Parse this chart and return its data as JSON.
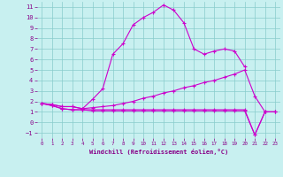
{
  "xlabel": "Windchill (Refroidissement éolien,°C)",
  "bg_color": "#c8f0f0",
  "line_color": "#cc00cc",
  "grid_color": "#88cccc",
  "xlim": [
    -0.5,
    23.5
  ],
  "ylim": [
    -1.5,
    11.5
  ],
  "xticks": [
    0,
    1,
    2,
    3,
    4,
    5,
    6,
    7,
    8,
    9,
    10,
    11,
    12,
    13,
    14,
    15,
    16,
    17,
    18,
    19,
    20,
    21,
    22,
    23
  ],
  "yticks": [
    -1,
    0,
    1,
    2,
    3,
    4,
    5,
    6,
    7,
    8,
    9,
    10,
    11
  ],
  "line1_x": [
    0,
    1,
    2,
    3,
    4,
    5,
    6,
    7,
    8,
    9,
    10,
    11,
    12,
    13,
    14,
    15,
    16,
    17,
    18,
    19,
    20
  ],
  "line1_y": [
    1.8,
    1.7,
    1.5,
    1.5,
    1.3,
    2.2,
    3.2,
    6.5,
    7.5,
    9.3,
    10.0,
    10.5,
    11.2,
    10.7,
    9.5,
    7.0,
    6.5,
    6.8,
    7.0,
    6.8,
    5.3
  ],
  "line2_x": [
    0,
    1,
    2,
    3,
    4,
    5,
    6,
    7,
    8,
    9,
    10,
    11,
    12,
    13,
    14,
    15,
    16,
    17,
    18,
    19,
    20,
    21,
    22,
    23
  ],
  "line2_y": [
    1.8,
    1.7,
    1.5,
    1.5,
    1.3,
    1.4,
    1.5,
    1.6,
    1.8,
    2.0,
    2.3,
    2.5,
    2.8,
    3.0,
    3.3,
    3.5,
    3.8,
    4.0,
    4.3,
    4.6,
    5.0,
    2.5,
    1.0,
    1.0
  ],
  "line3_x": [
    0,
    1,
    2,
    3,
    4,
    5,
    6,
    7,
    8,
    9,
    10,
    11,
    12,
    13,
    14,
    15,
    16,
    17,
    18,
    19,
    20,
    21,
    22,
    23
  ],
  "line3_y": [
    1.8,
    1.6,
    1.3,
    1.2,
    1.2,
    1.2,
    1.2,
    1.2,
    1.2,
    1.2,
    1.2,
    1.2,
    1.2,
    1.2,
    1.2,
    1.2,
    1.2,
    1.2,
    1.2,
    1.2,
    1.2,
    -1.2,
    1.0,
    1.0
  ],
  "line4_x": [
    0,
    1,
    2,
    3,
    4,
    5,
    6,
    7,
    8,
    9,
    10,
    11,
    12,
    13,
    14,
    15,
    16,
    17,
    18,
    19,
    20,
    21,
    22,
    23
  ],
  "line4_y": [
    1.8,
    1.6,
    1.3,
    1.2,
    1.2,
    1.1,
    1.1,
    1.1,
    1.1,
    1.1,
    1.1,
    1.1,
    1.1,
    1.1,
    1.1,
    1.1,
    1.1,
    1.1,
    1.1,
    1.1,
    1.1,
    -1.2,
    1.0,
    1.0
  ],
  "tick_fontsize": 5,
  "xlabel_fontsize": 5
}
